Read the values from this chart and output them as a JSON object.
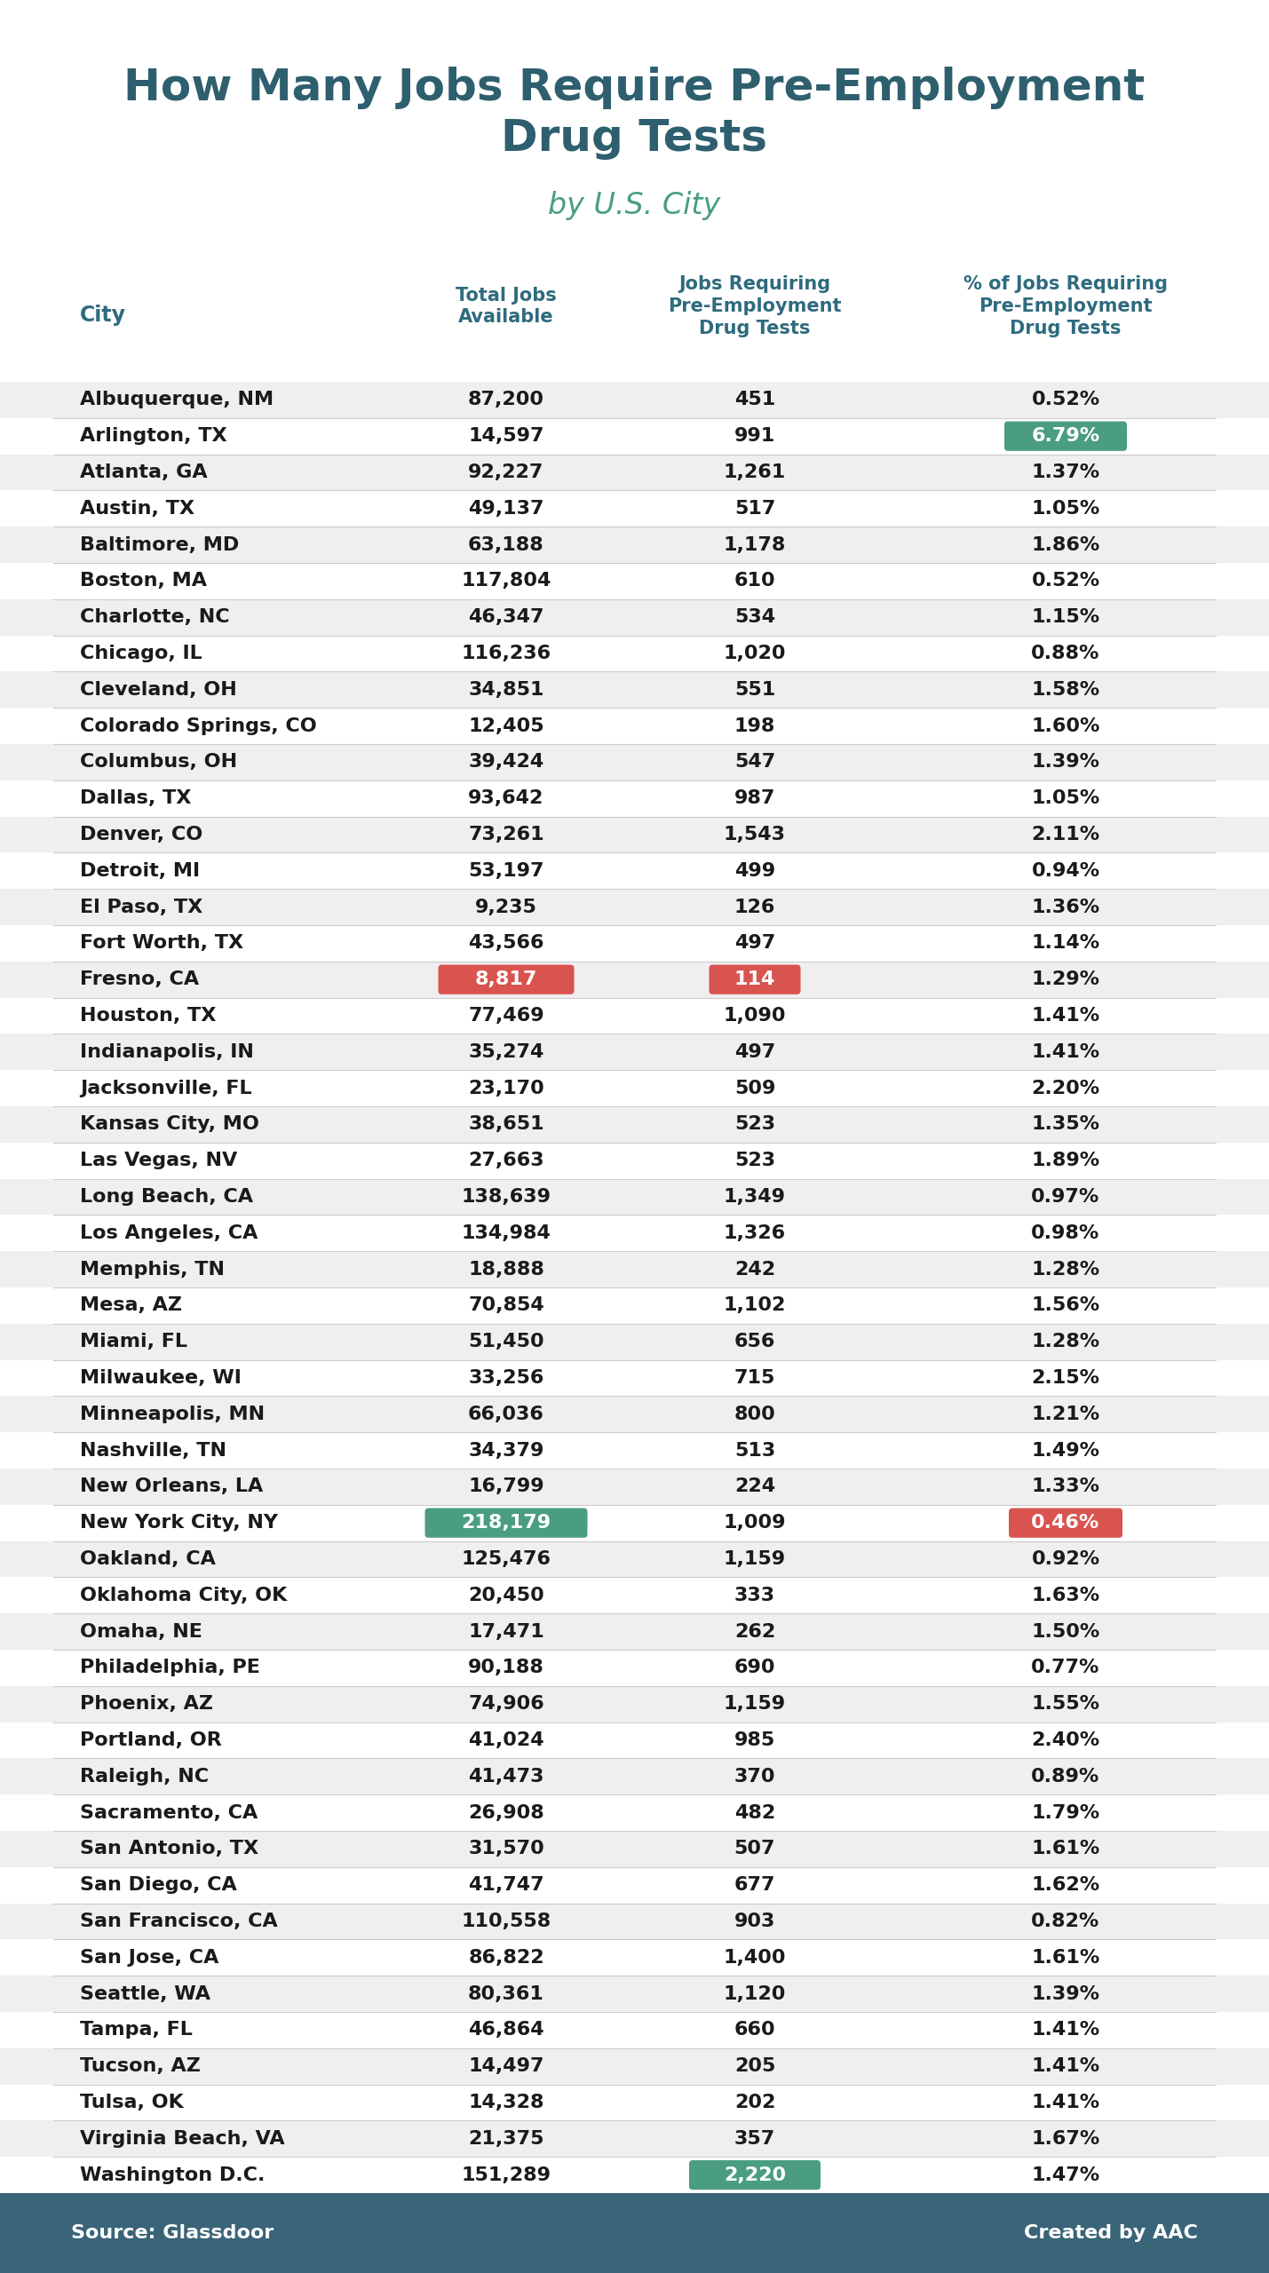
{
  "title": "How Many Jobs Require Pre-Employment\nDrug Tests",
  "subtitle": "by U.S. City",
  "col_headers": [
    "City",
    "Total Jobs\nAvailable",
    "Jobs Requiring\nPre-Employment\nDrug Tests",
    "% of Jobs Requiring\nPre-Employment\nDrug Tests"
  ],
  "rows": [
    [
      "Albuquerque, NM",
      "87,200",
      "451",
      "0.52%"
    ],
    [
      "Arlington, TX",
      "14,597",
      "991",
      "6.79%"
    ],
    [
      "Atlanta, GA",
      "92,227",
      "1,261",
      "1.37%"
    ],
    [
      "Austin, TX",
      "49,137",
      "517",
      "1.05%"
    ],
    [
      "Baltimore, MD",
      "63,188",
      "1,178",
      "1.86%"
    ],
    [
      "Boston, MA",
      "117,804",
      "610",
      "0.52%"
    ],
    [
      "Charlotte, NC",
      "46,347",
      "534",
      "1.15%"
    ],
    [
      "Chicago, IL",
      "116,236",
      "1,020",
      "0.88%"
    ],
    [
      "Cleveland, OH",
      "34,851",
      "551",
      "1.58%"
    ],
    [
      "Colorado Springs, CO",
      "12,405",
      "198",
      "1.60%"
    ],
    [
      "Columbus, OH",
      "39,424",
      "547",
      "1.39%"
    ],
    [
      "Dallas, TX",
      "93,642",
      "987",
      "1.05%"
    ],
    [
      "Denver, CO",
      "73,261",
      "1,543",
      "2.11%"
    ],
    [
      "Detroit, MI",
      "53,197",
      "499",
      "0.94%"
    ],
    [
      "El Paso, TX",
      "9,235",
      "126",
      "1.36%"
    ],
    [
      "Fort Worth, TX",
      "43,566",
      "497",
      "1.14%"
    ],
    [
      "Fresno, CA",
      "8,817",
      "114",
      "1.29%"
    ],
    [
      "Houston, TX",
      "77,469",
      "1,090",
      "1.41%"
    ],
    [
      "Indianapolis, IN",
      "35,274",
      "497",
      "1.41%"
    ],
    [
      "Jacksonville, FL",
      "23,170",
      "509",
      "2.20%"
    ],
    [
      "Kansas City, MO",
      "38,651",
      "523",
      "1.35%"
    ],
    [
      "Las Vegas, NV",
      "27,663",
      "523",
      "1.89%"
    ],
    [
      "Long Beach, CA",
      "138,639",
      "1,349",
      "0.97%"
    ],
    [
      "Los Angeles, CA",
      "134,984",
      "1,326",
      "0.98%"
    ],
    [
      "Memphis, TN",
      "18,888",
      "242",
      "1.28%"
    ],
    [
      "Mesa, AZ",
      "70,854",
      "1,102",
      "1.56%"
    ],
    [
      "Miami, FL",
      "51,450",
      "656",
      "1.28%"
    ],
    [
      "Milwaukee, WI",
      "33,256",
      "715",
      "2.15%"
    ],
    [
      "Minneapolis, MN",
      "66,036",
      "800",
      "1.21%"
    ],
    [
      "Nashville, TN",
      "34,379",
      "513",
      "1.49%"
    ],
    [
      "New Orleans, LA",
      "16,799",
      "224",
      "1.33%"
    ],
    [
      "New York City, NY",
      "218,179",
      "1,009",
      "0.46%"
    ],
    [
      "Oakland, CA",
      "125,476",
      "1,159",
      "0.92%"
    ],
    [
      "Oklahoma City, OK",
      "20,450",
      "333",
      "1.63%"
    ],
    [
      "Omaha, NE",
      "17,471",
      "262",
      "1.50%"
    ],
    [
      "Philadelphia, PE",
      "90,188",
      "690",
      "0.77%"
    ],
    [
      "Phoenix, AZ",
      "74,906",
      "1,159",
      "1.55%"
    ],
    [
      "Portland, OR",
      "41,024",
      "985",
      "2.40%"
    ],
    [
      "Raleigh, NC",
      "41,473",
      "370",
      "0.89%"
    ],
    [
      "Sacramento, CA",
      "26,908",
      "482",
      "1.79%"
    ],
    [
      "San Antonio, TX",
      "31,570",
      "507",
      "1.61%"
    ],
    [
      "San Diego, CA",
      "41,747",
      "677",
      "1.62%"
    ],
    [
      "San Francisco, CA",
      "110,558",
      "903",
      "0.82%"
    ],
    [
      "San Jose, CA",
      "86,822",
      "1,400",
      "1.61%"
    ],
    [
      "Seattle, WA",
      "80,361",
      "1,120",
      "1.39%"
    ],
    [
      "Tampa, FL",
      "46,864",
      "660",
      "1.41%"
    ],
    [
      "Tucson, AZ",
      "14,497",
      "205",
      "1.41%"
    ],
    [
      "Tulsa, OK",
      "14,328",
      "202",
      "1.41%"
    ],
    [
      "Virginia Beach, VA",
      "21,375",
      "357",
      "1.67%"
    ],
    [
      "Washington D.C.",
      "151,289",
      "2,220",
      "1.47%"
    ]
  ],
  "green_color": "#4a9e7f",
  "red_color": "#d9534f",
  "header_color": "#2e6b7e",
  "row_alt_color": "#efefef",
  "row_white_color": "#ffffff",
  "footer_bg": "#3a6478",
  "footer_text_color": "#ffffff",
  "title_color": "#2e5f6e",
  "subtitle_color": "#4a9e7f"
}
